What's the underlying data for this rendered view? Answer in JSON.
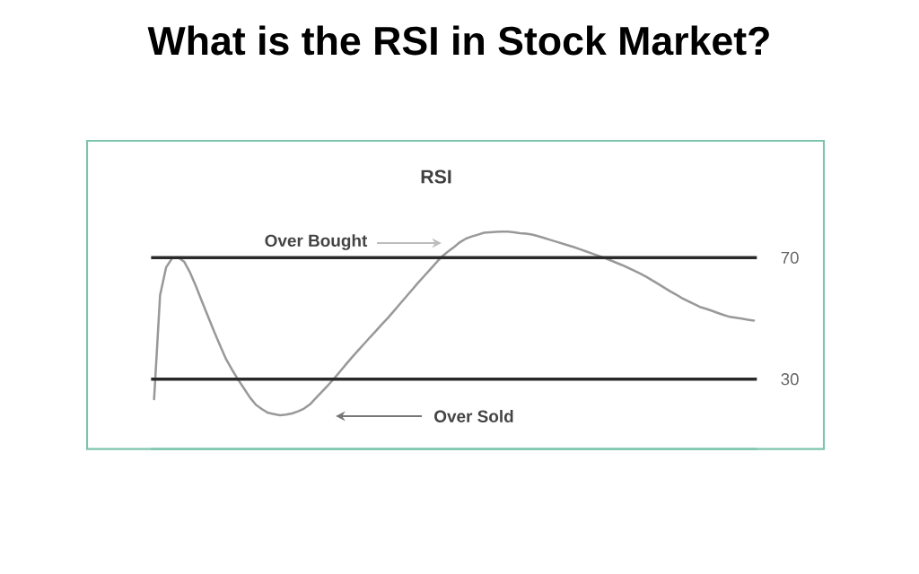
{
  "chart_data": {
    "type": "line",
    "title": "What is the RSI in Stock Market?",
    "subtitle": "RSI",
    "categories": [
      null,
      null,
      null,
      null,
      null,
      null,
      null,
      null,
      null,
      null,
      null,
      null,
      null,
      null,
      null,
      null,
      null,
      null,
      null,
      null,
      null,
      null,
      null,
      null,
      null,
      null,
      null,
      null,
      null,
      null,
      null,
      null,
      null,
      null,
      null,
      null,
      null,
      null,
      null,
      null,
      null,
      null,
      null,
      null,
      null,
      null,
      null,
      null,
      null,
      null,
      null,
      null,
      null,
      null,
      null,
      null,
      null,
      null,
      null,
      null,
      null,
      null,
      null,
      null,
      null,
      null,
      null,
      null,
      null,
      null,
      null,
      null,
      null,
      null,
      null,
      null,
      null,
      null,
      null,
      null,
      null,
      null,
      null,
      null,
      null,
      null,
      null,
      null,
      null,
      null,
      null,
      null,
      null,
      null,
      null,
      null,
      null,
      null,
      null,
      null,
      null
    ],
    "series": [
      {
        "color": "#999999",
        "values": [
          23.4,
          57.7,
          66.8,
          69.8,
          70.1,
          68.7,
          65.1,
          60.5,
          55.5,
          50.6,
          45.7,
          41.1,
          36.6,
          33.1,
          29.9,
          26.9,
          23.9,
          21.5,
          20.1,
          18.9,
          18.5,
          18.1,
          18.3,
          18.7,
          19.4,
          20.3,
          21.7,
          23.8,
          25.9,
          28.0,
          30.2,
          32.5,
          34.9,
          37.2,
          39.4,
          41.6,
          43.8,
          45.9,
          48.1,
          50.2,
          52.5,
          54.8,
          57.1,
          59.4,
          61.7,
          63.9,
          66.1,
          68.3,
          70.4,
          72.0,
          73.5,
          75.1,
          76.3,
          77.0,
          77.6,
          78.2,
          78.4,
          78.5,
          78.6,
          78.6,
          78.4,
          78.1,
          77.9,
          77.6,
          77.1,
          76.5,
          75.9,
          75.3,
          74.7,
          74.1,
          73.5,
          72.8,
          72.1,
          71.4,
          70.7,
          70.0,
          69.2,
          68.4,
          67.6,
          66.7,
          65.8,
          64.8,
          63.8,
          62.6,
          61.4,
          60.2,
          59.0,
          57.9,
          56.7,
          55.7,
          54.8,
          53.8,
          53.2,
          52.5,
          51.8,
          51.1,
          50.5,
          50.2,
          49.9,
          49.6,
          49.3
        ]
      }
    ],
    "ylim": [
      7,
      108.5
    ],
    "yticks": [
      30,
      70
    ],
    "tick_labels": "y",
    "line_style": "solid",
    "ref_lines": [
      {
        "axis": "y",
        "value": 70,
        "color": "#2a2a2a"
      },
      {
        "axis": "y",
        "value": 30,
        "color": "#2a2a2a"
      }
    ],
    "annotations": [
      "Over Bought",
      "Over Sold"
    ]
  }
}
